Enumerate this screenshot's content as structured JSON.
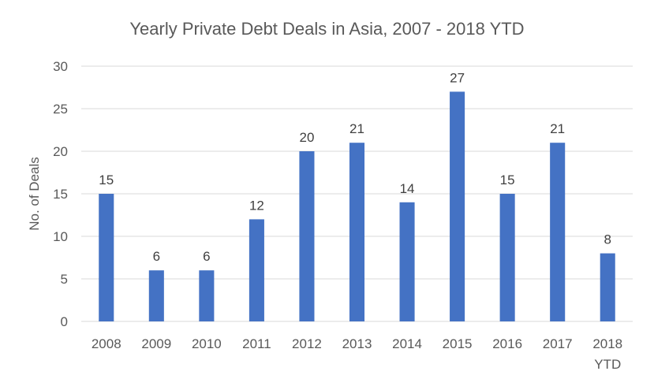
{
  "chart_data": {
    "type": "bar",
    "title": "Yearly Private Debt Deals in Asia, 2007 - 2018 YTD",
    "xlabel": "",
    "ylabel": "No. of Deals",
    "categories": [
      [
        "2008"
      ],
      [
        "2009"
      ],
      [
        "2010"
      ],
      [
        "2011"
      ],
      [
        "2012"
      ],
      [
        "2013"
      ],
      [
        "2014"
      ],
      [
        "2015"
      ],
      [
        "2016"
      ],
      [
        "2017"
      ],
      [
        "2018",
        "YTD"
      ]
    ],
    "values": [
      15,
      6,
      6,
      12,
      20,
      21,
      14,
      27,
      15,
      21,
      8
    ],
    "data_labels": [
      "15",
      "6",
      "6",
      "12",
      "20",
      "21",
      "14",
      "27",
      "15",
      "21",
      "8"
    ],
    "ylim": [
      0,
      30
    ],
    "yticks": [
      0,
      5,
      10,
      15,
      20,
      25,
      30
    ],
    "ytick_labels": [
      "0",
      "5",
      "10",
      "15",
      "20",
      "25",
      "30"
    ],
    "grid": true,
    "legend": "none",
    "colors": {
      "bar": "#4472C4",
      "grid": "#D9D9D9",
      "axis_text": "#595959",
      "label_text": "#404040"
    }
  }
}
